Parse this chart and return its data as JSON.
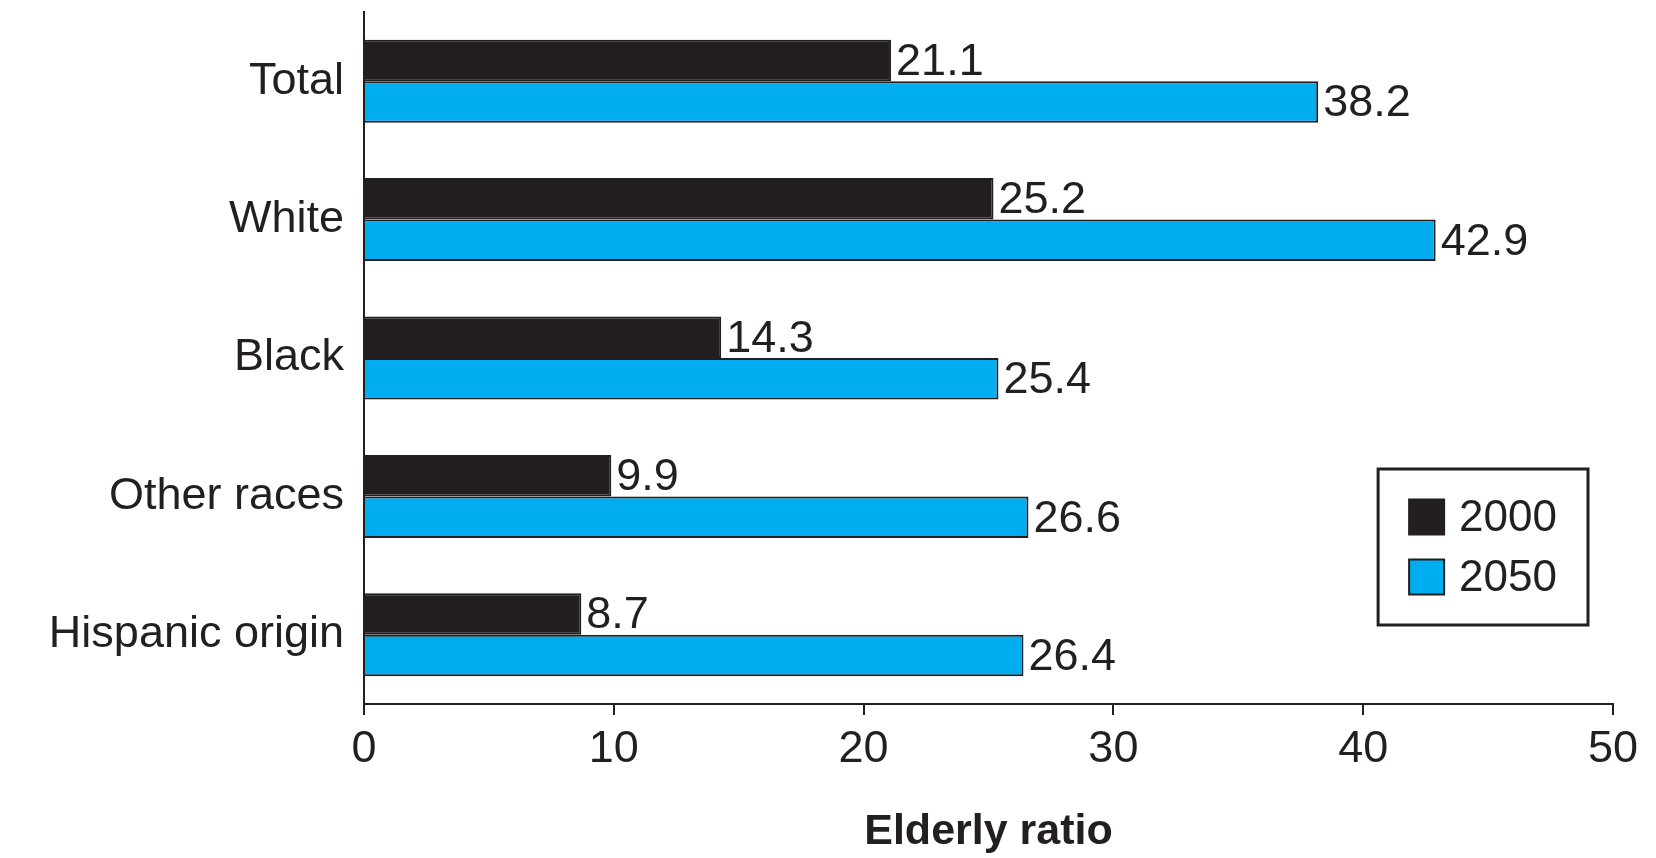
{
  "chart_data": {
    "type": "bar",
    "orientation": "horizontal",
    "xlabel": "Elderly ratio",
    "categories": [
      "Total",
      "White",
      "Black",
      "Other races",
      "Hispanic origin"
    ],
    "series": [
      {
        "name": "2000",
        "color": "#231f20",
        "values": [
          21.1,
          25.2,
          14.3,
          9.9,
          8.7
        ]
      },
      {
        "name": "2050",
        "color": "#00aeef",
        "values": [
          38.2,
          42.9,
          25.4,
          26.6,
          26.4
        ]
      }
    ],
    "xlim": [
      0,
      50
    ],
    "xticks": [
      0,
      10,
      20,
      30,
      40,
      50
    ],
    "data_labels": true,
    "legend": "bottom right",
    "grid": false
  }
}
